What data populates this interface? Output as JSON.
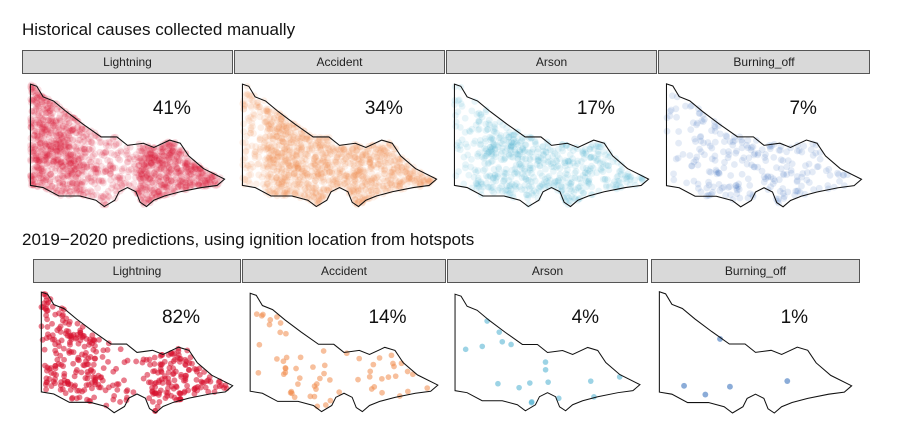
{
  "rows": [
    {
      "title": "Historical causes collected manually",
      "panels": [
        {
          "label": "Lightning",
          "percent": "41%",
          "color": "#d7112e",
          "density": 0.41
        },
        {
          "label": "Accident",
          "percent": "34%",
          "color": "#f08a4b",
          "density": 0.34
        },
        {
          "label": "Arson",
          "percent": "17%",
          "color": "#4aaed0",
          "density": 0.17
        },
        {
          "label": "Burning_off",
          "percent": "7%",
          "color": "#2c68b8",
          "density": 0.07
        }
      ]
    },
    {
      "title": "2019−2020 predictions, using ignition location from hotspots",
      "panels": [
        {
          "label": "Lightning",
          "percent": "82%",
          "color": "#d7112e",
          "density": 0.82
        },
        {
          "label": "Accident",
          "percent": "14%",
          "color": "#f08a4b",
          "density": 0.14
        },
        {
          "label": "Arson",
          "percent": "4%",
          "color": "#4aaed0",
          "density": 0.04
        },
        {
          "label": "Burning_off",
          "percent": "1%",
          "color": "#2c68b8",
          "density": 0.01
        }
      ]
    }
  ]
}
